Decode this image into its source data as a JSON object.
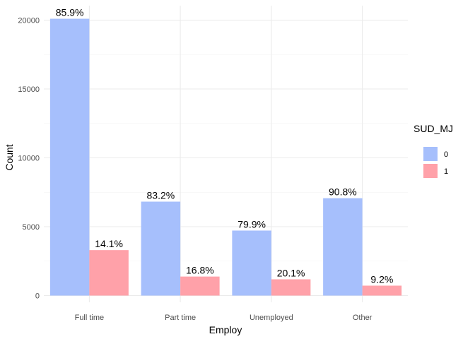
{
  "chart_data": {
    "type": "bar",
    "xlabel": "Employ",
    "ylabel": "Count",
    "categories": [
      "Full time",
      "Part time",
      "Unemployed",
      "Other"
    ],
    "series": [
      {
        "name": "0",
        "values": [
          20100,
          6820,
          4720,
          7070
        ],
        "labels": [
          "85.9%",
          "83.2%",
          "79.9%",
          "90.8%"
        ],
        "color": "#a6bffc"
      },
      {
        "name": "1",
        "values": [
          3300,
          1380,
          1180,
          720
        ],
        "labels": [
          "14.1%",
          "16.8%",
          "20.1%",
          "9.2%"
        ],
        "color": "#ffa1a9"
      }
    ],
    "ylim": [
      0,
      20500
    ],
    "yticks": [
      0,
      5000,
      10000,
      15000,
      20000
    ],
    "legend": {
      "title": "SUD_MJ",
      "position": "right"
    },
    "grid": true
  }
}
